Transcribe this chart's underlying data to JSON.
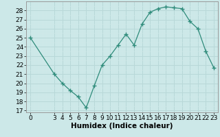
{
  "x": [
    0,
    3,
    4,
    5,
    6,
    7,
    8,
    9,
    10,
    11,
    12,
    13,
    14,
    15,
    16,
    17,
    18,
    19,
    20,
    21,
    22,
    23
  ],
  "y": [
    25,
    21,
    20,
    19.2,
    18.5,
    17.3,
    19.7,
    22,
    23,
    24.2,
    25.4,
    24.2,
    26.5,
    27.8,
    28.2,
    28.4,
    28.3,
    28.2,
    26.8,
    26,
    23.5,
    21.7
  ],
  "xlabel": "Humidex (Indice chaleur)",
  "xticks": [
    0,
    3,
    4,
    5,
    6,
    7,
    8,
    9,
    10,
    11,
    12,
    13,
    14,
    15,
    16,
    17,
    18,
    19,
    20,
    21,
    22,
    23
  ],
  "yticks": [
    17,
    18,
    19,
    20,
    21,
    22,
    23,
    24,
    25,
    26,
    27,
    28
  ],
  "ylim": [
    16.8,
    28.8
  ],
  "xlim": [
    -0.5,
    23.5
  ],
  "line_color": "#2e8b7a",
  "bg_color": "#cce8e8",
  "grid_major_color": "#b8d8d8",
  "grid_minor_color": "#d0e8e8",
  "tick_fontsize": 6.5,
  "xlabel_fontsize": 7.5
}
